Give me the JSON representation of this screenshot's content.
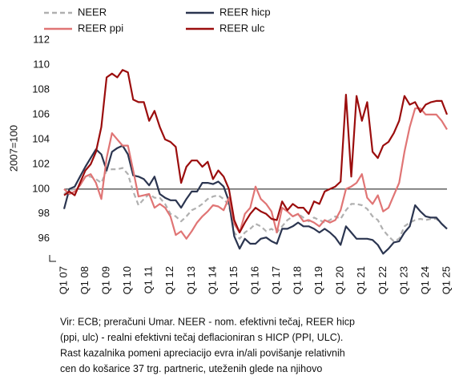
{
  "chart_data": {
    "type": "line",
    "y_label": "2007=100",
    "categories": [
      "Q1 07",
      null,
      null,
      null,
      "Q1 08",
      null,
      null,
      null,
      "Q1 09",
      null,
      null,
      null,
      "Q1 10",
      null,
      null,
      null,
      "Q1 11",
      null,
      null,
      null,
      "Q1 12",
      null,
      null,
      null,
      "Q1 13",
      null,
      null,
      null,
      "Q1 14",
      null,
      null,
      null,
      "Q1 15",
      null,
      null,
      null,
      "Q1 16",
      null,
      null,
      null,
      "Q1 17",
      null,
      null,
      null,
      "Q1 18",
      null,
      null,
      null,
      "Q1 19",
      null,
      null,
      null,
      "Q1 20",
      null,
      null,
      null,
      "Q1 21",
      null,
      null,
      null,
      "Q1 22",
      null,
      null,
      null,
      "Q1 23",
      null,
      null,
      null,
      "Q1 24",
      null,
      null,
      null,
      "Q1 25"
    ],
    "series": [
      {
        "name": "NEER",
        "color": "#b0b0b0",
        "dash": true,
        "values": [
          99.6,
          99.9,
          100,
          100.3,
          101,
          101,
          100.8,
          100.5,
          101.5,
          101.6,
          101.6,
          101.7,
          101.2,
          99.8,
          98.7,
          99.2,
          99.6,
          99.3,
          99.3,
          98.8,
          98,
          97.8,
          97.4,
          97.8,
          98.3,
          98.5,
          98.8,
          99.2,
          99.4,
          99.5,
          99.2,
          98.7,
          96.5,
          96,
          96.5,
          96.8,
          97.2,
          97,
          96.6,
          96.8,
          96.5,
          97,
          97.5,
          97.8,
          98,
          97.7,
          97.4,
          97.7,
          97.5,
          97.3,
          97.5,
          97.8,
          97.6,
          98.3,
          98.8,
          98.8,
          98.7,
          98.4,
          97.8,
          97.5,
          96.7,
          96.2,
          95.8,
          96,
          97,
          97.3,
          97.5,
          97.6,
          97.5,
          97.6,
          97.6,
          97.2,
          96.8
        ]
      },
      {
        "name": "REER hicp",
        "color": "#2b3550",
        "dash": false,
        "values": [
          98.4,
          100,
          100.2,
          101,
          101.8,
          102.5,
          103.2,
          102.8,
          101.5,
          103,
          103.3,
          103.5,
          102.8,
          101.1,
          101,
          100.8,
          100.3,
          101,
          99.6,
          99.3,
          99.1,
          99.1,
          98.5,
          99.2,
          99.8,
          99.8,
          100.5,
          100.5,
          100.4,
          100.6,
          100.2,
          99,
          96.2,
          95.2,
          96,
          95.6,
          95.6,
          96,
          96.1,
          95.8,
          95.6,
          96.8,
          96.8,
          97,
          97.3,
          97,
          97,
          96.8,
          96.5,
          96.8,
          96.5,
          96.1,
          95.5,
          97,
          96.5,
          96,
          96,
          96,
          95.9,
          95.5,
          94.8,
          95.2,
          95.7,
          95.8,
          96.5,
          97,
          98.7,
          98.2,
          97.8,
          97.7,
          97.7,
          97.2,
          96.8
        ]
      },
      {
        "name": "REER ppi",
        "color": "#e07575",
        "dash": false,
        "values": [
          100,
          99.6,
          99.8,
          100.3,
          101,
          101.2,
          100.5,
          99.2,
          102.5,
          104.5,
          104,
          103.5,
          103.5,
          101.5,
          99.4,
          99.5,
          99.6,
          98.5,
          98.8,
          98.5,
          97.8,
          96.3,
          96.6,
          96,
          96.6,
          97.3,
          97.8,
          98.2,
          98.7,
          98.6,
          98.3,
          99.3,
          97.2,
          96.5,
          98,
          98.5,
          100.2,
          99.2,
          98.8,
          98.2,
          96.5,
          98.5,
          98.2,
          97.8,
          98,
          97.4,
          97.5,
          97.3,
          97,
          97.5,
          97.3,
          97.5,
          98.3,
          100,
          100.2,
          100.5,
          101.2,
          99.3,
          98.8,
          99.5,
          98.2,
          98.5,
          99.5,
          100.5,
          103,
          105,
          106.5,
          106.5,
          106,
          106,
          106,
          105.5,
          104.8
        ]
      },
      {
        "name": "REER ulc",
        "color": "#9b0d0d",
        "dash": false,
        "values": [
          99.5,
          99.8,
          99.5,
          100.5,
          101.5,
          102,
          103,
          105,
          109,
          109.3,
          109,
          109.6,
          109.4,
          107.2,
          107,
          107,
          105.5,
          106.3,
          105,
          104,
          103.8,
          103.4,
          100.5,
          101.8,
          102.3,
          102.3,
          101.8,
          102.2,
          100.8,
          101.5,
          101,
          100,
          97.5,
          96.5,
          97.3,
          98,
          98.5,
          98.2,
          98,
          97.6,
          97.5,
          99,
          98.3,
          98.8,
          98.5,
          98.5,
          98,
          99,
          98.8,
          99.8,
          100,
          100.2,
          100.6,
          107.6,
          101,
          107.5,
          105.5,
          107,
          103,
          102.5,
          103.5,
          103.8,
          104.5,
          105.5,
          107.5,
          106.8,
          107,
          106.2,
          106.8,
          107,
          107.1,
          107.1,
          106
        ]
      }
    ],
    "ylim": [
      94.5,
      112
    ],
    "yticks": [
      96,
      98,
      100,
      102,
      104,
      106,
      108,
      110,
      112
    ],
    "reference_line": 100,
    "note": [
      "Vir: ECB; preračuni Umar. NEER - nom. efektivni tečaj, REER hicp",
      "(ppi, ulc) - realni efektivni tečaj deflacioniran s HICP (PPI, ULC).",
      "Rast kazalnika pomeni apreciacijo evra in/ali povišanje relativnih",
      "cen do košarice 37 trg. partneric, uteženih glede na njihovo"
    ]
  }
}
